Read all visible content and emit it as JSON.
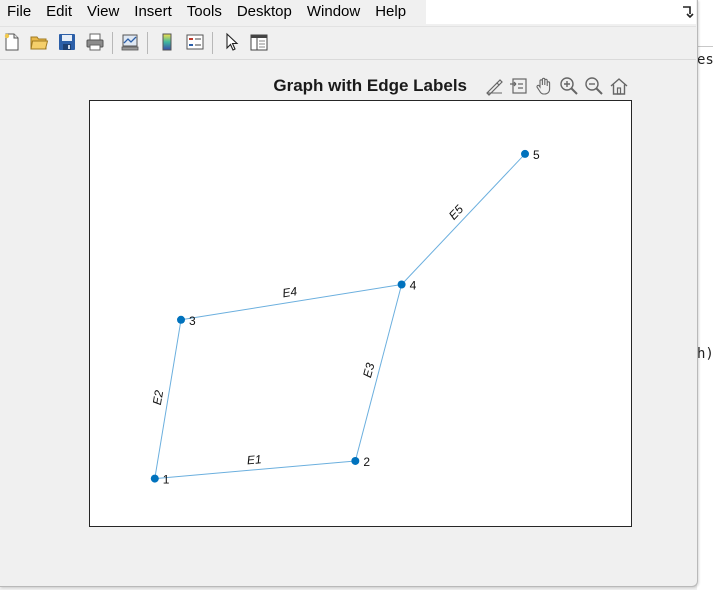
{
  "menubar": {
    "items": [
      "File",
      "Edit",
      "View",
      "Insert",
      "Tools",
      "Desktop",
      "Window",
      "Help"
    ]
  },
  "toolbar": {
    "buttons": [
      "new-figure-icon",
      "open-file-icon",
      "save-icon",
      "print-icon",
      "link-plot-icon",
      "insert-colorbar-icon",
      "insert-legend-icon",
      "edit-plot-pointer-icon",
      "open-property-inspector-icon"
    ]
  },
  "axes_toolbar": {
    "buttons": [
      "brush-data-icon",
      "data-tips-icon",
      "pan-icon",
      "zoom-in-icon",
      "zoom-out-icon",
      "restore-view-icon"
    ]
  },
  "background_app": {
    "fragment_top": "est",
    "fragment_mid": "h)"
  },
  "chart_data": {
    "type": "graph",
    "title": "Graph with Edge Labels",
    "nodes": [
      {
        "label": "1",
        "x": 1.0,
        "y": 1.0
      },
      {
        "label": "2",
        "x": 2.3,
        "y": 1.1
      },
      {
        "label": "3",
        "x": 1.17,
        "y": 1.9
      },
      {
        "label": "4",
        "x": 2.6,
        "y": 2.1
      },
      {
        "label": "5",
        "x": 3.4,
        "y": 2.84
      }
    ],
    "edges": [
      {
        "from": 0,
        "to": 1,
        "label": "E1"
      },
      {
        "from": 0,
        "to": 2,
        "label": "E2"
      },
      {
        "from": 1,
        "to": 3,
        "label": "E3"
      },
      {
        "from": 2,
        "to": 3,
        "label": "E4"
      },
      {
        "from": 3,
        "to": 4,
        "label": "E5"
      }
    ],
    "xlim": [
      0.58,
      4.1
    ],
    "ylim": [
      0.72,
      3.14
    ],
    "node_color": "#0072bd",
    "edge_color": "#6bafde",
    "grid": false
  }
}
